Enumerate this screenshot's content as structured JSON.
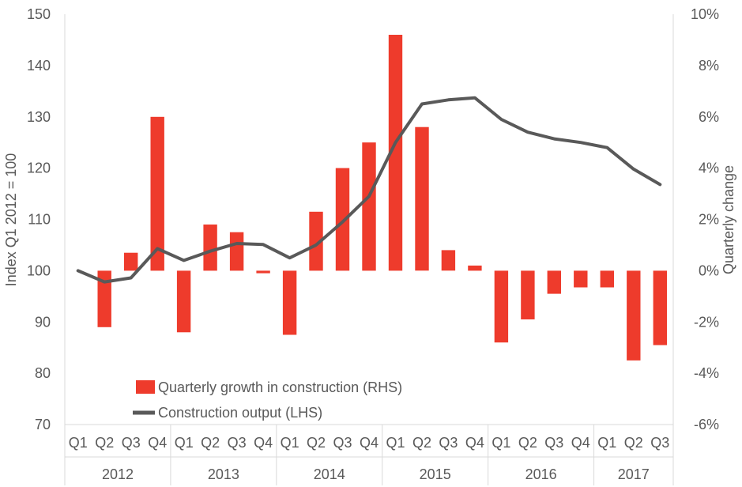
{
  "chart_data": {
    "type": "bar+line",
    "categories": [
      "Q1",
      "Q2",
      "Q3",
      "Q4",
      "Q1",
      "Q2",
      "Q3",
      "Q4",
      "Q1",
      "Q2",
      "Q3",
      "Q4",
      "Q1",
      "Q2",
      "Q3",
      "Q4",
      "Q1",
      "Q2",
      "Q3",
      "Q4",
      "Q1",
      "Q2",
      "Q3"
    ],
    "year_groups": [
      {
        "label": "2012",
        "count": 4
      },
      {
        "label": "2013",
        "count": 4
      },
      {
        "label": "2014",
        "count": 4
      },
      {
        "label": "2015",
        "count": 4
      },
      {
        "label": "2016",
        "count": 4
      },
      {
        "label": "2017",
        "count": 3
      }
    ],
    "series": [
      {
        "name": "Quarterly growth in construction (RHS)",
        "type": "bar",
        "axis": "right",
        "color": "#ee3b2c",
        "values": [
          0.0,
          -2.2,
          0.7,
          6.0,
          -2.4,
          1.8,
          1.5,
          -0.1,
          -2.5,
          2.3,
          4.0,
          5.0,
          9.2,
          5.6,
          0.8,
          0.2,
          -2.8,
          -1.9,
          -0.9,
          -0.65,
          -0.65,
          -3.5,
          -2.9
        ]
      },
      {
        "name": "Construction output (LHS)",
        "type": "line",
        "axis": "left",
        "color": "#595959",
        "values": [
          100.0,
          97.8,
          98.6,
          104.3,
          102.0,
          103.8,
          105.3,
          105.1,
          102.5,
          105.0,
          109.5,
          114.5,
          125.0,
          132.5,
          133.3,
          133.7,
          129.5,
          127.0,
          125.7,
          125.0,
          124.0,
          119.8,
          116.8
        ]
      }
    ],
    "y_left": {
      "label": "Index Q1 2012 = 100",
      "lim": [
        70,
        150
      ],
      "ticks": [
        "70",
        "80",
        "90",
        "100",
        "110",
        "120",
        "130",
        "140",
        "150"
      ]
    },
    "y_right": {
      "label": "Quarterly change",
      "lim": [
        -6,
        10
      ],
      "ticks": [
        "-6%",
        "-4%",
        "-2%",
        "0%",
        "2%",
        "4%",
        "6%",
        "8%",
        "10%"
      ]
    },
    "legend_position": "bottom-left",
    "grid": false
  }
}
